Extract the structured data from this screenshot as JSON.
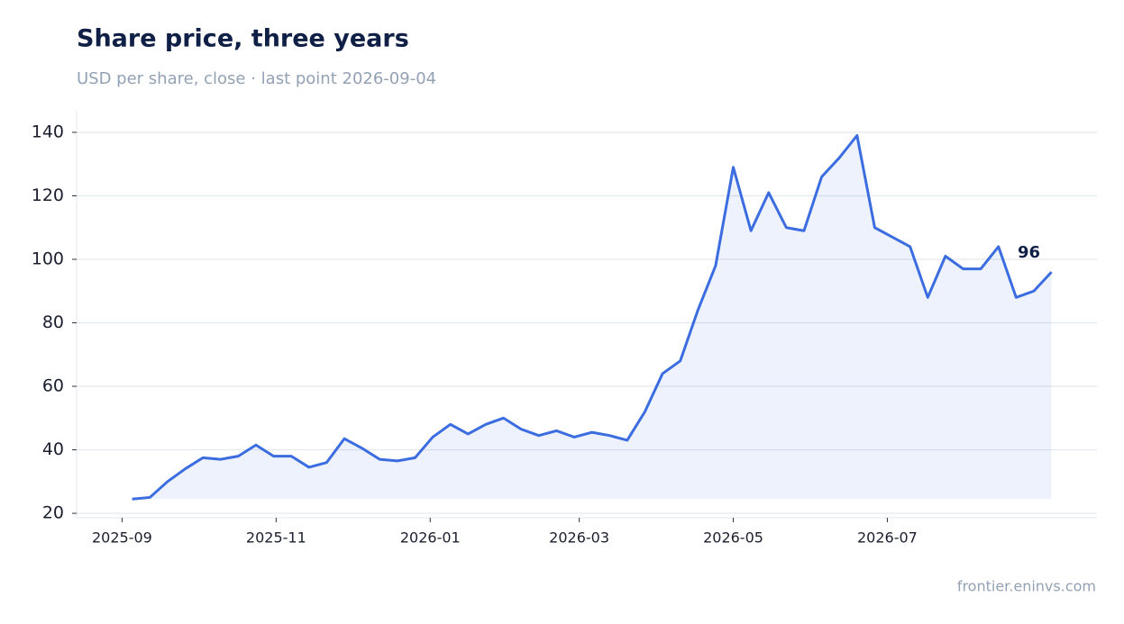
{
  "chart_data": {
    "type": "line",
    "title": "Share price, three years",
    "subtitle": "USD per share, close · last point 2026-09-04",
    "source": "frontier.eninvs.com",
    "x": [
      "2025-09-05",
      "2025-09-12",
      "2025-09-19",
      "2025-09-26",
      "2025-10-03",
      "2025-10-10",
      "2025-10-17",
      "2025-10-24",
      "2025-10-31",
      "2025-11-07",
      "2025-11-14",
      "2025-11-21",
      "2025-11-28",
      "2025-12-05",
      "2025-12-12",
      "2025-12-19",
      "2025-12-26",
      "2026-01-02",
      "2026-01-09",
      "2026-01-16",
      "2026-01-23",
      "2026-01-30",
      "2026-02-06",
      "2026-02-13",
      "2026-02-20",
      "2026-02-27",
      "2026-03-06",
      "2026-03-13",
      "2026-03-20",
      "2026-03-27",
      "2026-04-03",
      "2026-04-10",
      "2026-04-17",
      "2026-04-24",
      "2026-05-01",
      "2026-05-08",
      "2026-05-15",
      "2026-05-22",
      "2026-05-29",
      "2026-06-05",
      "2026-06-12",
      "2026-06-19",
      "2026-06-26",
      "2026-07-03",
      "2026-07-10",
      "2026-07-17",
      "2026-07-24",
      "2026-07-31",
      "2026-08-07",
      "2026-08-14",
      "2026-08-21",
      "2026-08-28",
      "2026-09-04"
    ],
    "series": [
      {
        "name": "Share price",
        "color": "#3b6de0",
        "values": [
          24.5,
          25,
          30,
          34,
          37.5,
          37,
          38,
          41.5,
          38,
          38,
          34.5,
          36,
          43.5,
          40.5,
          37,
          36.5,
          37.5,
          44,
          48,
          45,
          48,
          50,
          46.5,
          44.5,
          46,
          44,
          45.5,
          44.5,
          43,
          52,
          64,
          68,
          84,
          98,
          129,
          109,
          121,
          110,
          109,
          126,
          132,
          139,
          110,
          107,
          104,
          88,
          101,
          97,
          97,
          104,
          88,
          90,
          96
        ]
      }
    ],
    "xlim": [
      "2025-08-14",
      "2026-09-22"
    ],
    "xticks": [
      {
        "value": "2025-09-01",
        "label": "2025-09"
      },
      {
        "value": "2025-11-01",
        "label": "2025-11"
      },
      {
        "value": "2026-01-01",
        "label": "2026-01"
      },
      {
        "value": "2026-03-01",
        "label": "2026-03"
      },
      {
        "value": "2026-05-01",
        "label": "2026-05"
      },
      {
        "value": "2026-07-01",
        "label": "2026-07"
      }
    ],
    "ylim": [
      18.6,
      146.8
    ],
    "yticks": [
      20,
      40,
      60,
      80,
      100,
      120,
      140
    ],
    "grid": true
  }
}
